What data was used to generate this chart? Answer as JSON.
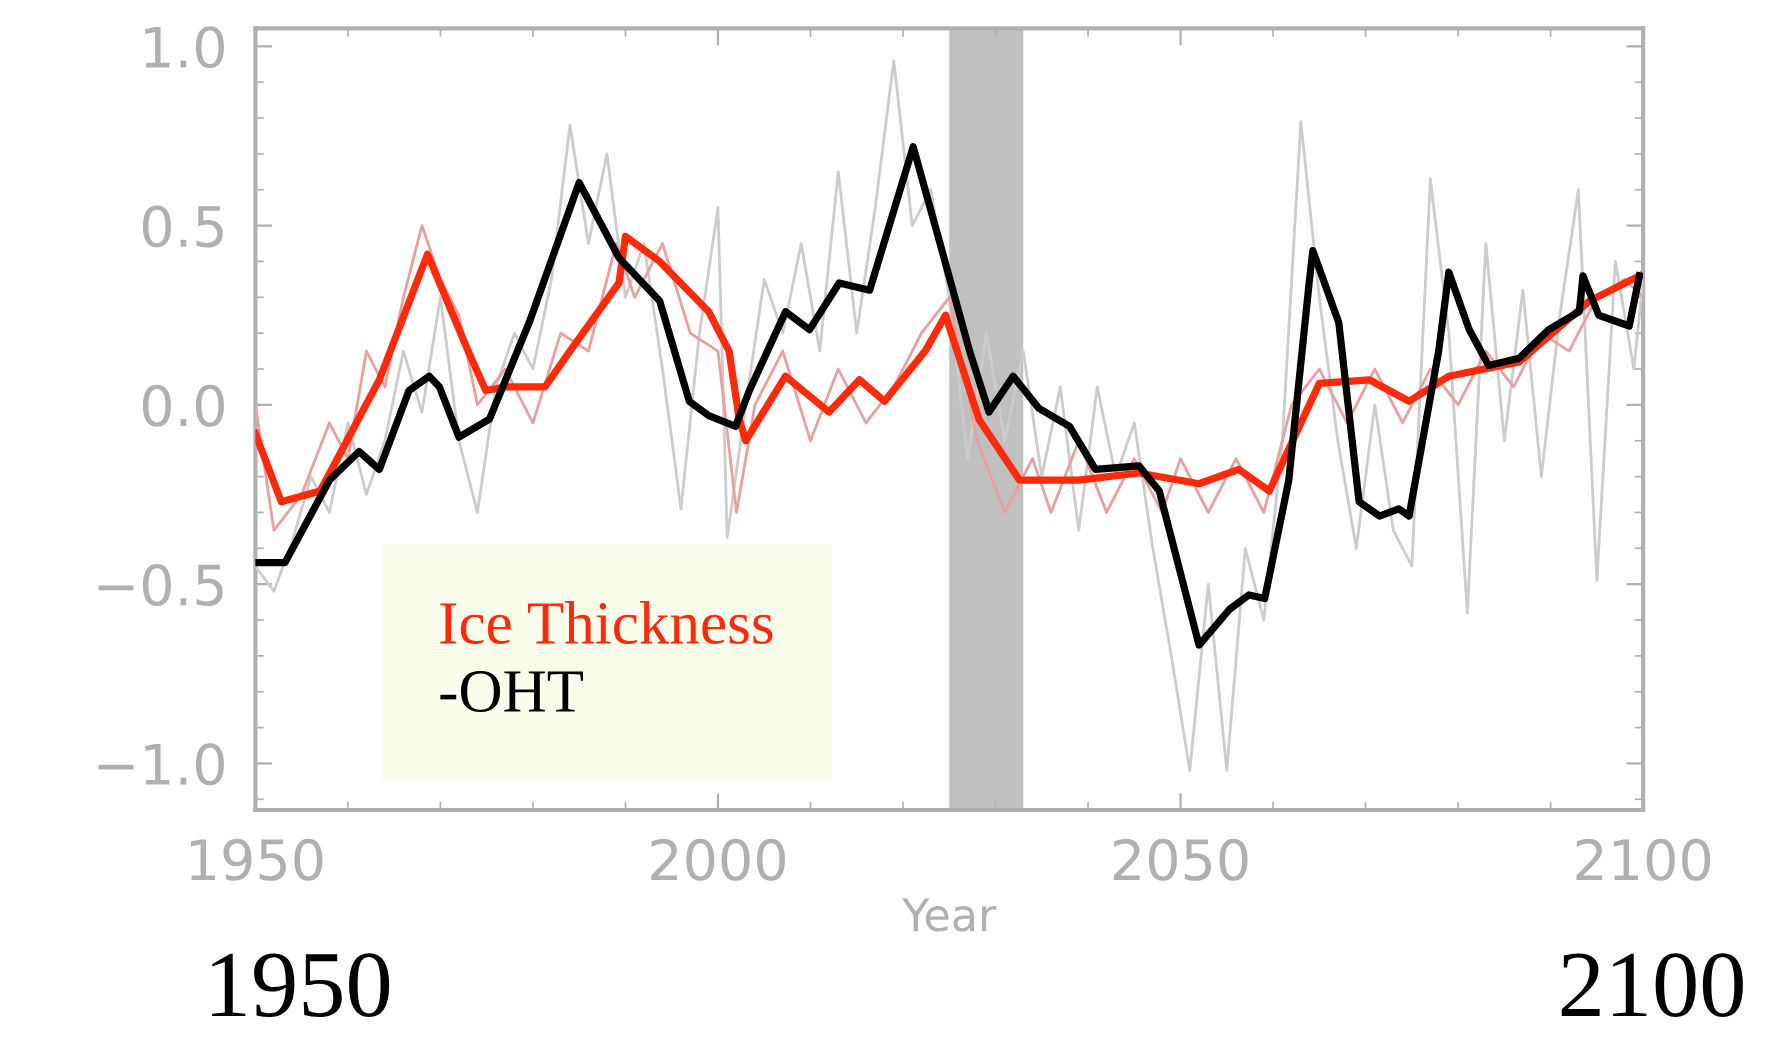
{
  "chart_data": {
    "type": "line",
    "xlabel": "Year",
    "xlim": [
      1950,
      2100
    ],
    "xticks": [
      1950,
      2000,
      2050,
      2100
    ],
    "ylim": [
      -1.13,
      1.05
    ],
    "yticks": [
      {
        "value": -1.0,
        "label": "−1.0"
      },
      {
        "value": -0.5,
        "label": "−0.5"
      },
      {
        "value": 0.0,
        "label": "0.0"
      },
      {
        "value": 0.5,
        "label": "0.5"
      },
      {
        "value": 1.0,
        "label": "1.0"
      }
    ],
    "grid": false,
    "legend": "bottom left",
    "line_style": "solid",
    "marker": "none",
    "bands": [
      {
        "axis": "x",
        "from": 2025,
        "to": 2033,
        "color": "#c0c0c0"
      }
    ],
    "series": [
      {
        "color": "#cccccc",
        "x": [
          1950,
          1952,
          1954,
          1956,
          1958,
          1960,
          1962,
          1964,
          1966,
          1968,
          1970,
          1972,
          1974,
          1976,
          1978,
          1980,
          1982,
          1984,
          1986,
          1988,
          1990,
          1992,
          1994,
          1996,
          1998,
          2000,
          2001,
          2003,
          2005,
          2007,
          2009,
          2011,
          2013,
          2015,
          2017,
          2019,
          2021,
          2023,
          2025,
          2027,
          2029,
          2031,
          2033,
          2035,
          2037,
          2039,
          2041,
          2043,
          2045,
          2047,
          2049,
          2051,
          2053,
          2055,
          2057,
          2059,
          2061,
          2063,
          2065,
          2067,
          2069,
          2071,
          2073,
          2075,
          2077,
          2079,
          2081,
          2083,
          2085,
          2087,
          2089,
          2091,
          2093,
          2095,
          2097,
          2099,
          2100
        ],
        "values": [
          -0.45,
          -0.52,
          -0.38,
          -0.2,
          -0.3,
          -0.05,
          -0.25,
          -0.1,
          0.15,
          -0.02,
          0.3,
          -0.1,
          -0.3,
          0.05,
          0.2,
          0.1,
          0.35,
          0.78,
          0.45,
          0.7,
          0.3,
          0.45,
          0.1,
          -0.29,
          0.2,
          0.55,
          -0.37,
          0.0,
          0.35,
          0.2,
          0.45,
          0.15,
          0.65,
          0.2,
          0.55,
          0.96,
          0.5,
          0.6,
          0.3,
          -0.15,
          0.2,
          -0.1,
          0.15,
          -0.2,
          0.05,
          -0.35,
          0.05,
          -0.2,
          -0.05,
          -0.4,
          -0.7,
          -1.02,
          -0.5,
          -1.02,
          -0.4,
          -0.6,
          -0.1,
          0.79,
          0.3,
          -0.1,
          -0.4,
          0.0,
          -0.35,
          -0.45,
          0.63,
          0.2,
          -0.58,
          0.45,
          -0.1,
          0.32,
          -0.2,
          0.25,
          0.6,
          -0.49,
          0.4,
          0.1,
          0.35
        ]
      },
      {
        "color": "#e8a0a0",
        "x": [
          1950,
          1952,
          1955,
          1958,
          1960,
          1962,
          1964,
          1966,
          1968,
          1970,
          1972,
          1974,
          1977,
          1980,
          1983,
          1986,
          1989,
          1991,
          1994,
          1997,
          2000,
          2002,
          2004,
          2007,
          2010,
          2013,
          2016,
          2019,
          2022,
          2025,
          2028,
          2031,
          2034,
          2036,
          2039,
          2042,
          2045,
          2048,
          2050,
          2053,
          2056,
          2059,
          2062,
          2065,
          2068,
          2071,
          2074,
          2077,
          2080,
          2083,
          2086,
          2089,
          2092,
          2095,
          2098,
          2100
        ],
        "values": [
          0.0,
          -0.35,
          -0.25,
          -0.05,
          -0.15,
          0.15,
          0.05,
          0.3,
          0.5,
          0.35,
          0.25,
          0.0,
          0.1,
          -0.05,
          0.2,
          0.15,
          0.45,
          0.3,
          0.45,
          0.2,
          0.15,
          -0.3,
          0.0,
          0.15,
          -0.1,
          0.1,
          -0.05,
          0.05,
          0.2,
          0.3,
          -0.1,
          -0.3,
          -0.15,
          -0.3,
          -0.1,
          -0.3,
          -0.15,
          -0.3,
          -0.15,
          -0.3,
          -0.15,
          -0.3,
          0.0,
          0.1,
          -0.05,
          0.1,
          -0.05,
          0.1,
          0.0,
          0.15,
          0.05,
          0.2,
          0.15,
          0.3,
          0.35,
          0.3
        ]
      },
      {
        "name": "Ice Thickness",
        "color": "#ff2a0a",
        "x": [
          1950,
          1952.8,
          1957,
          1963.4,
          1968.6,
          1973,
          1974.9,
          1977,
          1981.3,
          1984,
          1989.3,
          1990,
          1993.7,
          1999,
          2001.2,
          2002.3,
          2003,
          2007.3,
          2012,
          2015.3,
          2018,
          2022.4,
          2024.6,
          2028.2,
          2032.6,
          2039,
          2045.5,
          2052,
          2056.3,
          2059.6,
          2065,
          2070.4,
          2074.7,
          2079,
          2086.6,
          2094.2,
          2099.6
        ],
        "values": [
          -0.08,
          -0.27,
          -0.24,
          0.07,
          0.42,
          0.15,
          0.04,
          0.05,
          0.05,
          0.15,
          0.34,
          0.47,
          0.4,
          0.26,
          0.15,
          -0.04,
          -0.1,
          0.08,
          -0.02,
          0.07,
          0.01,
          0.15,
          0.25,
          -0.04,
          -0.21,
          -0.21,
          -0.19,
          -0.22,
          -0.18,
          -0.24,
          0.06,
          0.07,
          0.01,
          0.08,
          0.12,
          0.29,
          0.36
        ]
      },
      {
        "name": "-OHT",
        "color": "#000000",
        "x": [
          1950,
          1953.2,
          1958,
          1961.2,
          1963.4,
          1966.6,
          1968.8,
          1969.9,
          1972,
          1975.3,
          1979.6,
          1985,
          1989.3,
          1993.7,
          1996.9,
          1999,
          2001.9,
          2003.4,
          2007.3,
          2009.9,
          2013.1,
          2016.4,
          2021.1,
          2023.9,
          2027.2,
          2029.3,
          2031.9,
          2034.7,
          2038,
          2040.8,
          2045.5,
          2047.7,
          2052,
          2055.3,
          2057.4,
          2059.1,
          2061.7,
          2063.9,
          2064.3,
          2067.1,
          2069.3,
          2071.5,
          2073.6,
          2074.7,
          2077.9,
          2079,
          2081.2,
          2083.3,
          2086.6,
          2089.8,
          2093.1,
          2093.5,
          2095.2,
          2098.5,
          2099.6
        ],
        "values": [
          -0.44,
          -0.44,
          -0.21,
          -0.13,
          -0.18,
          0.04,
          0.08,
          0.05,
          -0.09,
          -0.04,
          0.23,
          0.62,
          0.41,
          0.29,
          0.01,
          -0.03,
          -0.06,
          0.04,
          0.26,
          0.21,
          0.34,
          0.32,
          0.72,
          0.46,
          0.15,
          -0.02,
          0.08,
          -0.01,
          -0.06,
          -0.18,
          -0.17,
          -0.24,
          -0.67,
          -0.57,
          -0.53,
          -0.54,
          -0.21,
          0.34,
          0.43,
          0.23,
          -0.27,
          -0.31,
          -0.29,
          -0.31,
          0.15,
          0.37,
          0.21,
          0.11,
          0.13,
          0.21,
          0.26,
          0.36,
          0.25,
          0.22,
          0.36
        ]
      }
    ],
    "annotations": [
      "1950",
      "2100"
    ]
  }
}
